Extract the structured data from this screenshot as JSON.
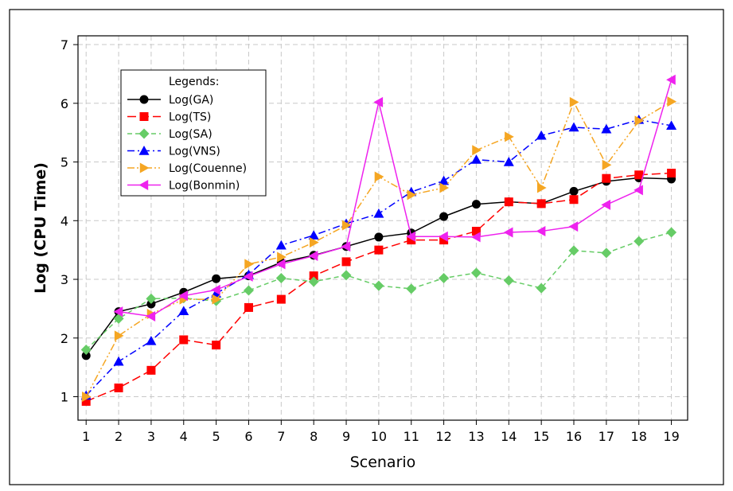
{
  "chart_data": {
    "type": "line",
    "xlabel": "Scenario",
    "ylabel": "Log (CPU Time)",
    "x": [
      1,
      2,
      3,
      4,
      5,
      6,
      7,
      8,
      9,
      10,
      11,
      12,
      13,
      14,
      15,
      16,
      17,
      18,
      19
    ],
    "xlim": [
      0.75,
      19.5
    ],
    "ylim": [
      0.6,
      7.15
    ],
    "yticks": [
      1,
      2,
      3,
      4,
      5,
      6,
      7
    ],
    "grid": true,
    "legend": {
      "title": "Legends:",
      "placement": "top-left"
    },
    "series": [
      {
        "name": "Log(GA)",
        "color": "#000000",
        "marker": "circle",
        "dash": "solid",
        "values": [
          1.7,
          2.45,
          2.58,
          2.78,
          3.01,
          3.06,
          3.29,
          3.41,
          3.56,
          3.72,
          3.79,
          4.07,
          4.28,
          4.32,
          4.29,
          4.5,
          4.67,
          4.73,
          4.71
        ]
      },
      {
        "name": "Log(TS)",
        "color": "#ff0000",
        "marker": "square",
        "dash": "longdash",
        "values": [
          0.92,
          1.15,
          1.45,
          1.97,
          1.88,
          2.52,
          2.66,
          3.06,
          3.3,
          3.5,
          3.67,
          3.67,
          3.82,
          4.32,
          4.29,
          4.36,
          4.72,
          4.78,
          4.81
        ]
      },
      {
        "name": "Log(SA)",
        "color": "#66cc66",
        "marker": "diamond",
        "dash": "dash",
        "values": [
          1.8,
          2.33,
          2.67,
          2.68,
          2.63,
          2.81,
          3.02,
          2.96,
          3.07,
          2.89,
          2.84,
          3.02,
          3.11,
          2.98,
          2.85,
          3.49,
          3.45,
          3.65,
          3.8
        ]
      },
      {
        "name": "Log(VNS)",
        "color": "#0000ff",
        "marker": "triangle-up",
        "dash": "dashdot",
        "values": [
          1.02,
          1.6,
          1.95,
          2.46,
          2.76,
          3.08,
          3.58,
          3.75,
          3.95,
          4.12,
          4.49,
          4.68,
          5.04,
          5.0,
          5.45,
          5.59,
          5.56,
          5.72,
          5.62
        ]
      },
      {
        "name": "Log(Couenne)",
        "color": "#f5a623",
        "marker": "triangle-right",
        "dash": "dashdotdot",
        "values": [
          1.0,
          2.04,
          2.41,
          2.66,
          2.66,
          3.26,
          3.38,
          3.63,
          3.92,
          4.75,
          4.44,
          4.56,
          5.2,
          5.43,
          4.56,
          6.02,
          4.95,
          5.7,
          6.03
        ]
      },
      {
        "name": "Log(Bonmin)",
        "color": "#ee22ee",
        "marker": "triangle-left",
        "dash": "solid",
        "values": [
          null,
          2.45,
          2.37,
          2.72,
          2.82,
          3.05,
          3.26,
          3.4,
          3.56,
          6.02,
          3.73,
          3.73,
          3.72,
          3.8,
          3.82,
          3.9,
          4.27,
          4.52,
          6.4
        ]
      }
    ]
  }
}
